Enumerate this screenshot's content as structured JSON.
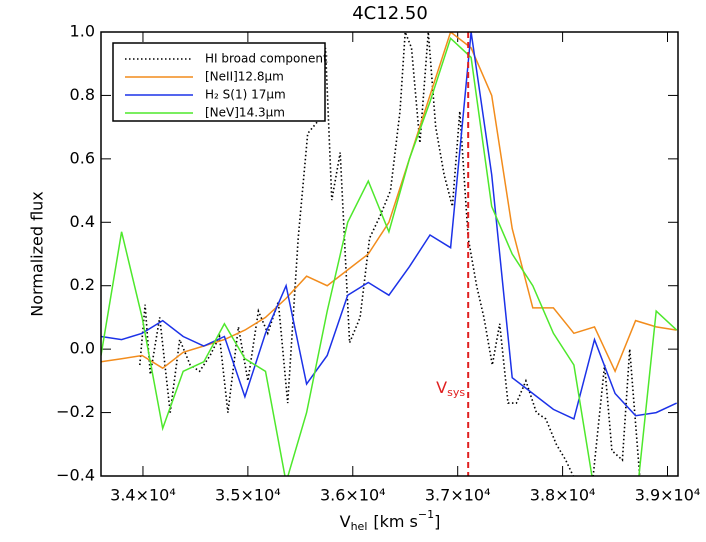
{
  "chart_data": {
    "type": "line",
    "title": "4C12.50",
    "xlabel": {
      "main": "V",
      "sub": "hel",
      "unit": "[km s",
      "sup": "−1",
      "close": "]"
    },
    "ylabel": "Normalized flux",
    "xlim": [
      33600,
      39100
    ],
    "ylim": [
      -0.4,
      1.0
    ],
    "xticks": [
      {
        "value": 34000,
        "label": "3.4×10⁴"
      },
      {
        "value": 35000,
        "label": "3.5×10⁴"
      },
      {
        "value": 36000,
        "label": "3.6×10⁴"
      },
      {
        "value": 37000,
        "label": "3.7×10⁴"
      },
      {
        "value": 38000,
        "label": "3.8×10⁴"
      },
      {
        "value": 39000,
        "label": "3.9×10⁴"
      }
    ],
    "yticks": [
      {
        "value": -0.4,
        "label": "−0.4"
      },
      {
        "value": -0.2,
        "label": "−0.2"
      },
      {
        "value": 0,
        "label": "0.0"
      },
      {
        "value": 0.2,
        "label": "0.2"
      },
      {
        "value": 0.4,
        "label": "0.4"
      },
      {
        "value": 0.6,
        "label": "0.6"
      },
      {
        "value": 0.8,
        "label": "0.8"
      },
      {
        "value": 1.0,
        "label": "1.0"
      }
    ],
    "legend": "upper left",
    "annotations": [
      {
        "text": "V",
        "sub": "sys",
        "x": 37100,
        "color": "#e02020"
      }
    ],
    "series": [
      {
        "name": "HI broad component",
        "color": "#000000",
        "style": "dotted",
        "x": [
          33970,
          34020,
          34070,
          34160,
          34260,
          34350,
          34450,
          34540,
          34640,
          34730,
          34810,
          34910,
          35000,
          35100,
          35190,
          35290,
          35380,
          35480,
          35570,
          35670,
          35740,
          35800,
          35880,
          35970,
          36070,
          36160,
          36260,
          36360,
          36450,
          36500,
          36560,
          36640,
          36720,
          36790,
          36870,
          36950,
          37020,
          37100,
          37180,
          37250,
          37330,
          37400,
          37480,
          37560,
          37650,
          37750,
          37840,
          37940,
          38030,
          38130,
          38260,
          38400,
          38470,
          38570,
          38640,
          38740
        ],
        "values": [
          -0.05,
          0.14,
          -0.08,
          0.1,
          -0.2,
          0.03,
          -0.05,
          -0.07,
          -0.02,
          0.04,
          -0.2,
          0.07,
          -0.1,
          0.12,
          0.05,
          0.15,
          -0.17,
          0.35,
          0.68,
          0.72,
          0.95,
          0.47,
          0.62,
          0.02,
          0.1,
          0.35,
          0.42,
          0.5,
          0.75,
          1.0,
          0.95,
          0.65,
          1.0,
          0.7,
          0.55,
          0.45,
          0.75,
          0.35,
          0.2,
          0.1,
          -0.05,
          0.08,
          -0.17,
          -0.17,
          -0.1,
          -0.2,
          -0.22,
          -0.3,
          -0.35,
          -0.42,
          -0.5,
          -0.05,
          -0.32,
          -0.35,
          0.0,
          -0.42
        ]
      },
      {
        "name": "[NeII]12.8μm",
        "color": "#f28c1c",
        "style": "solid",
        "x": [
          33600,
          33796,
          33992,
          34188,
          34384,
          34580,
          34776,
          34972,
          35168,
          35364,
          35560,
          35756,
          35952,
          36148,
          36344,
          36540,
          36736,
          36932,
          37128,
          37324,
          37520,
          37716,
          37912,
          38108,
          38304,
          38500,
          38696,
          38892,
          39088
        ],
        "values": [
          -0.04,
          -0.03,
          -0.02,
          -0.06,
          -0.01,
          0.01,
          0.03,
          0.06,
          0.1,
          0.16,
          0.23,
          0.2,
          0.25,
          0.3,
          0.4,
          0.6,
          0.8,
          1.0,
          0.95,
          0.8,
          0.38,
          0.13,
          0.13,
          0.05,
          0.07,
          -0.07,
          0.09,
          0.07,
          0.06
        ]
      },
      {
        "name": "H₂ S(1) 17μm",
        "color": "#1c32e8",
        "style": "solid",
        "x": [
          33600,
          33796,
          33992,
          34188,
          34384,
          34580,
          34776,
          34972,
          35168,
          35364,
          35560,
          35756,
          35952,
          36148,
          36344,
          36540,
          36736,
          36932,
          37128,
          37324,
          37520,
          37716,
          37912,
          38108,
          38304,
          38500,
          38696,
          38892,
          39088
        ],
        "values": [
          0.04,
          0.03,
          0.05,
          0.09,
          0.04,
          0.01,
          0.04,
          -0.15,
          0.05,
          0.2,
          -0.11,
          -0.02,
          0.17,
          0.21,
          0.17,
          0.26,
          0.36,
          0.32,
          1.0,
          0.55,
          -0.09,
          -0.14,
          -0.19,
          -0.22,
          0.03,
          -0.14,
          -0.21,
          -0.2,
          -0.17
        ]
      },
      {
        "name": "[NeV]14.3μm",
        "color": "#4ee82c",
        "style": "solid",
        "x": [
          33600,
          33796,
          33992,
          34188,
          34384,
          34580,
          34776,
          34972,
          35168,
          35364,
          35560,
          35756,
          35952,
          36148,
          36344,
          36540,
          36736,
          36932,
          37128,
          37324,
          37520,
          37716,
          37912,
          38108,
          38304,
          38500,
          38696,
          38892,
          39088
        ],
        "values": [
          -0.02,
          0.37,
          0.1,
          -0.25,
          -0.07,
          -0.04,
          0.08,
          -0.03,
          -0.07,
          -0.42,
          -0.2,
          0.12,
          0.4,
          0.53,
          0.37,
          0.6,
          0.78,
          0.98,
          0.92,
          0.45,
          0.3,
          0.2,
          0.05,
          -0.05,
          -0.45,
          -0.55,
          -0.5,
          0.12,
          0.06
        ]
      }
    ]
  }
}
